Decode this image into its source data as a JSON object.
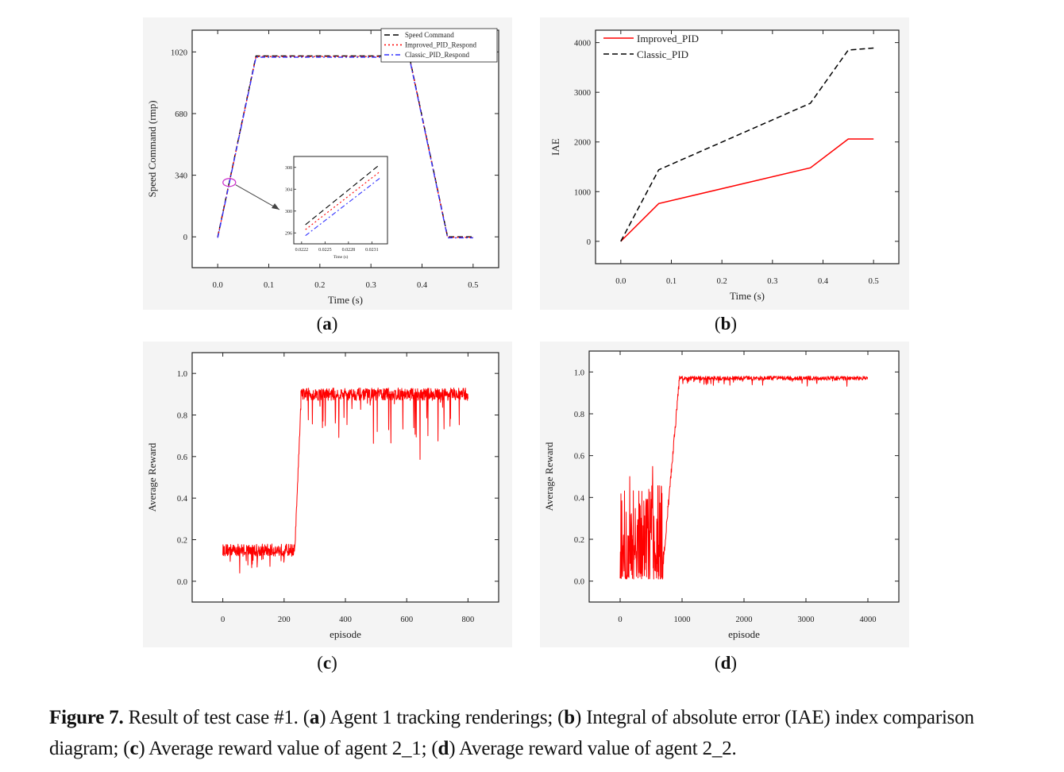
{
  "chart_data": [
    {
      "id": "a",
      "type": "line",
      "xlabel": "Time (s)",
      "ylabel": "Speed Command (rmp)",
      "xticks": [
        "0.0",
        "0.1",
        "0.2",
        "0.3",
        "0.4",
        "0.5"
      ],
      "yticks": [
        "0",
        "340",
        "680",
        "1020"
      ],
      "xlim": [
        -0.05,
        0.55
      ],
      "ylim": [
        -170,
        1140
      ],
      "legend_position": "top-right",
      "series": [
        {
          "name": "Speed Command",
          "color": "#000000",
          "dash": "dashed",
          "x": [
            0,
            0.075,
            0.375,
            0.45,
            0.5
          ],
          "y": [
            0,
            998,
            998,
            0,
            0
          ]
        },
        {
          "name": "Improved_PID_Respond",
          "color": "#ff0000",
          "dash": "dotted",
          "x": [
            0,
            0.075,
            0.375,
            0.45,
            0.5
          ],
          "y": [
            0,
            997,
            997,
            0,
            0
          ]
        },
        {
          "name": "Classic_PID_Respond",
          "color": "#3333ff",
          "dash": "dashdot",
          "x": [
            0,
            0.075,
            0.375,
            0.45,
            0.5
          ],
          "y": [
            0,
            996,
            996,
            0,
            0
          ]
        }
      ],
      "inset": {
        "xticks": [
          "0.0222",
          "0.0225",
          "0.0228",
          "0.0231"
        ],
        "yticks": [
          "296",
          "300",
          "304",
          "308"
        ],
        "xlabel": "Time (s)",
        "xlim": [
          0.0221,
          0.0233
        ],
        "ylim": [
          294,
          310
        ],
        "series": [
          {
            "name": "Speed Command",
            "x": [
              0.02225,
              0.0232
            ],
            "y": [
              297.5,
              308.5
            ]
          },
          {
            "name": "Improved_PID_Respond",
            "x": [
              0.02225,
              0.0232
            ],
            "y": [
              296.6,
              307.2
            ]
          },
          {
            "name": "Classic_PID_Respond",
            "x": [
              0.02225,
              0.0232
            ],
            "y": [
              295.5,
              306.0
            ]
          }
        ]
      }
    },
    {
      "id": "b",
      "type": "line",
      "xlabel": "Time (s)",
      "ylabel": "IAE",
      "xticks": [
        "0.0",
        "0.1",
        "0.2",
        "0.3",
        "0.4",
        "0.5"
      ],
      "yticks": [
        "0",
        "1000",
        "2000",
        "3000",
        "4000"
      ],
      "xlim": [
        -0.05,
        0.55
      ],
      "ylim": [
        -450,
        4250
      ],
      "legend_position": "top-left",
      "series": [
        {
          "name": "Improved_PID",
          "color": "#ff0000",
          "dash": "solid",
          "x": [
            0,
            0.075,
            0.375,
            0.45,
            0.5
          ],
          "y": [
            0,
            760,
            1480,
            2060,
            2060
          ]
        },
        {
          "name": "Classic_PID",
          "color": "#000000",
          "dash": "dashed",
          "x": [
            0,
            0.075,
            0.375,
            0.45,
            0.5
          ],
          "y": [
            0,
            1440,
            2780,
            3850,
            3890
          ]
        }
      ]
    },
    {
      "id": "c",
      "type": "line",
      "xlabel": "episode",
      "ylabel": "Average Reward",
      "xticks": [
        "0",
        "200",
        "400",
        "600",
        "800"
      ],
      "yticks": [
        "0.0",
        "0.2",
        "0.4",
        "0.6",
        "0.8",
        "1.0"
      ],
      "xlim": [
        -100,
        900
      ],
      "ylim": [
        -0.1,
        1.1
      ],
      "series": [
        {
          "name": "",
          "color": "#ff0000",
          "dash": "solid",
          "segments": [
            {
              "x_start": 0,
              "x_end": 235,
              "level": 0.15,
              "noise": 0.03,
              "dips": 0.1
            },
            {
              "x_start": 235,
              "x_end": 255,
              "ramp_from": 0.15,
              "ramp_to": 0.86
            },
            {
              "x_start": 255,
              "x_end": 800,
              "level": 0.9,
              "noise": 0.03,
              "dips": 0.3
            }
          ]
        }
      ]
    },
    {
      "id": "d",
      "type": "line",
      "xlabel": "episode",
      "ylabel": "Average Reward",
      "xticks": [
        "0",
        "1000",
        "2000",
        "3000",
        "4000"
      ],
      "yticks": [
        "0.0",
        "0.2",
        "0.4",
        "0.6",
        "0.8",
        "1.0"
      ],
      "xlim": [
        -500,
        4500
      ],
      "ylim": [
        -0.1,
        1.1
      ],
      "series": [
        {
          "name": "",
          "color": "#ff0000",
          "dash": "solid",
          "segments": [
            {
              "x_start": 0,
              "x_end": 700,
              "level": 0.05,
              "noise": 0.2,
              "dips": 0.0
            },
            {
              "x_start": 700,
              "x_end": 950,
              "ramp_from": 0.1,
              "ramp_to": 0.94
            },
            {
              "x_start": 950,
              "x_end": 4000,
              "level": 0.97,
              "noise": 0.01,
              "dips": 0.03
            }
          ]
        }
      ]
    }
  ],
  "sublabels": [
    "a",
    "b",
    "c",
    "d"
  ],
  "caption": {
    "label": "Figure 7.",
    "text_1": " Result of test case #1. (",
    "a": "a",
    "text_2": ") Agent 1 tracking renderings; (",
    "b": "b",
    "text_3": ") Integral of absolute error (IAE) index comparison diagram; (",
    "c": "c",
    "text_4": ") Average reward value of agent 2_1; (",
    "d": "d",
    "text_5": ") Average reward value of agent 2_2."
  }
}
